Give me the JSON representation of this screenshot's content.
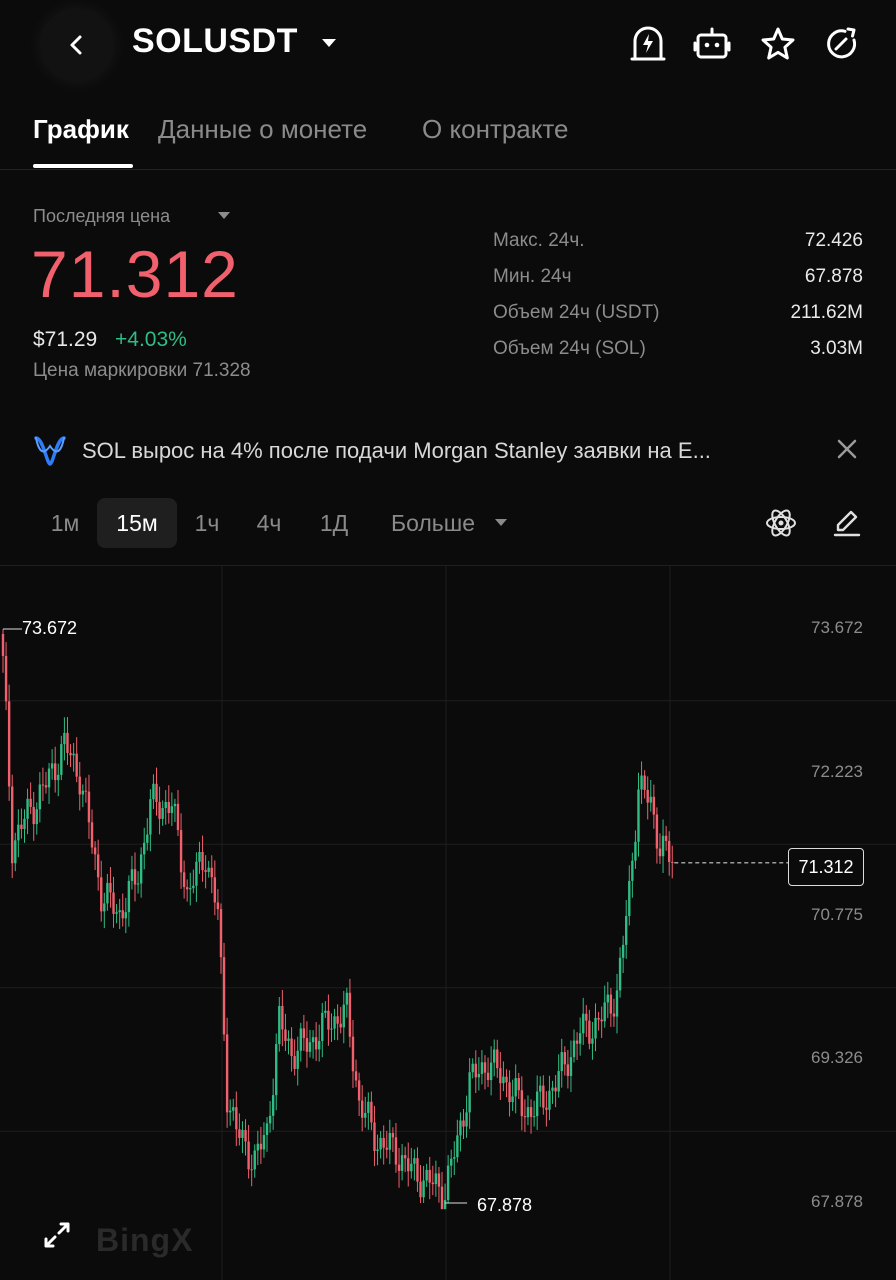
{
  "header": {
    "symbol": "SOLUSDT",
    "icons": [
      "back-icon",
      "alert-bolt-icon",
      "bot-icon",
      "star-icon",
      "refresh-icon"
    ]
  },
  "tabs": [
    {
      "label": "График"
    },
    {
      "label": "Данные о монете"
    },
    {
      "label": "О контракте"
    }
  ],
  "price": {
    "last_label": "Последняя цена",
    "last": "71.312",
    "usd": "$71.29",
    "change": "+4.03%",
    "mark": "Цена маркировки 71.328",
    "colors": {
      "down": "#f0606d",
      "up": "#2fbd85"
    }
  },
  "stats": [
    {
      "label": "Макс. 24ч.",
      "value": "72.426"
    },
    {
      "label": "Мин. 24ч",
      "value": "67.878"
    },
    {
      "label": "Объем 24ч (USDT)",
      "value": "211.62M"
    },
    {
      "label": "Объем 24ч (SOL)",
      "value": "3.03M"
    }
  ],
  "news": {
    "text": "SOL вырос на 4% после подачи Morgan Stanley заявки на E..."
  },
  "intervals": [
    "1м",
    "15м",
    "1ч",
    "4ч",
    "1Д",
    "Больше"
  ],
  "selected_interval": "15м",
  "chart": {
    "watermark": "BingX",
    "high_label": "73.672",
    "low_label": "67.878",
    "current_tag": "71.312"
  },
  "chart_data": {
    "type": "candlestick",
    "y_ticks": [
      "73.672",
      "72.223",
      "70.775",
      "69.326",
      "67.878"
    ],
    "ylim": [
      67.878,
      73.672
    ],
    "grid": true,
    "current_price": 71.312,
    "high": 73.672,
    "low": 67.878,
    "close_path": [
      {
        "i": 0,
        "close": 73.4
      },
      {
        "i": 3,
        "close": 71.5
      },
      {
        "i": 8,
        "close": 71.8
      },
      {
        "i": 14,
        "close": 72.1
      },
      {
        "i": 20,
        "close": 72.5
      },
      {
        "i": 25,
        "close": 72.2
      },
      {
        "i": 32,
        "close": 71.0
      },
      {
        "i": 38,
        "close": 70.8
      },
      {
        "i": 44,
        "close": 71.2
      },
      {
        "i": 48,
        "close": 71.9
      },
      {
        "i": 55,
        "close": 71.9
      },
      {
        "i": 60,
        "close": 71.0
      },
      {
        "i": 66,
        "close": 71.4
      },
      {
        "i": 70,
        "close": 70.8
      },
      {
        "i": 73,
        "close": 69.0
      },
      {
        "i": 76,
        "close": 68.6
      },
      {
        "i": 82,
        "close": 68.3
      },
      {
        "i": 86,
        "close": 68.6
      },
      {
        "i": 90,
        "close": 69.7
      },
      {
        "i": 94,
        "close": 69.4
      },
      {
        "i": 100,
        "close": 69.5
      },
      {
        "i": 106,
        "close": 69.7
      },
      {
        "i": 112,
        "close": 69.8
      },
      {
        "i": 116,
        "close": 68.9
      },
      {
        "i": 122,
        "close": 68.5
      },
      {
        "i": 128,
        "close": 68.4
      },
      {
        "i": 133,
        "close": 68.2
      },
      {
        "i": 138,
        "close": 68.1
      },
      {
        "i": 144,
        "close": 68.0
      },
      {
        "i": 148,
        "close": 68.5
      },
      {
        "i": 152,
        "close": 69.1
      },
      {
        "i": 158,
        "close": 69.3
      },
      {
        "i": 164,
        "close": 69.1
      },
      {
        "i": 170,
        "close": 68.8
      },
      {
        "i": 176,
        "close": 68.9
      },
      {
        "i": 182,
        "close": 69.2
      },
      {
        "i": 188,
        "close": 69.6
      },
      {
        "i": 194,
        "close": 69.7
      },
      {
        "i": 200,
        "close": 70.0
      },
      {
        "i": 204,
        "close": 71.0
      },
      {
        "i": 207,
        "close": 72.1
      },
      {
        "i": 211,
        "close": 71.9
      },
      {
        "i": 214,
        "close": 71.5
      },
      {
        "i": 218,
        "close": 71.312
      }
    ]
  }
}
